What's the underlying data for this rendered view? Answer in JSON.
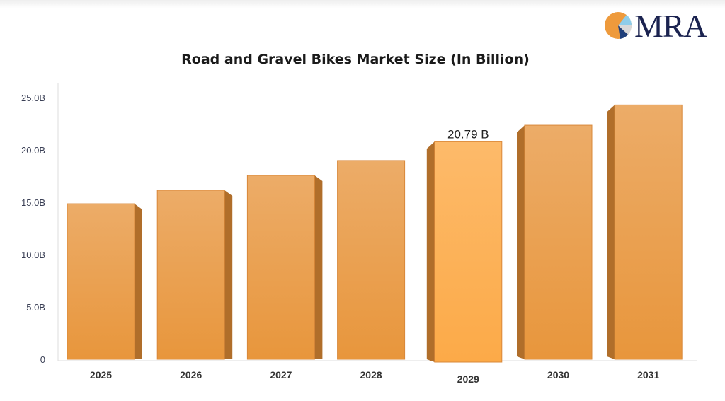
{
  "logo": {
    "text": "MRA",
    "colors": [
      "#ee9a3c",
      "#8fcde9",
      "#d9d9d9",
      "#1f3f7a"
    ]
  },
  "chart_data": {
    "type": "bar",
    "title": "Road and Gravel Bikes Market Size (In Billion)",
    "xlabel": "",
    "ylabel": "",
    "categories": [
      "2025",
      "2026",
      "2027",
      "2028",
      "2029",
      "2030",
      "2031"
    ],
    "values": [
      14.86,
      16.15,
      17.57,
      18.99,
      20.79,
      22.36,
      24.3
    ],
    "highlight_index": 4,
    "data_labels": [
      {
        "index": 4,
        "text": "20.79 B"
      }
    ],
    "ylim": [
      0,
      25
    ],
    "yticks": [
      0,
      5,
      10,
      15,
      20,
      25
    ],
    "ytick_labels": [
      "0",
      "5.0B",
      "10.0B",
      "15.0B",
      "20.0B",
      "25.0B"
    ],
    "grid": false,
    "legend": "none",
    "colors": {
      "bar": "#eca45a",
      "bar_highlight": "#fdb257",
      "side": "#b06e2a"
    }
  }
}
